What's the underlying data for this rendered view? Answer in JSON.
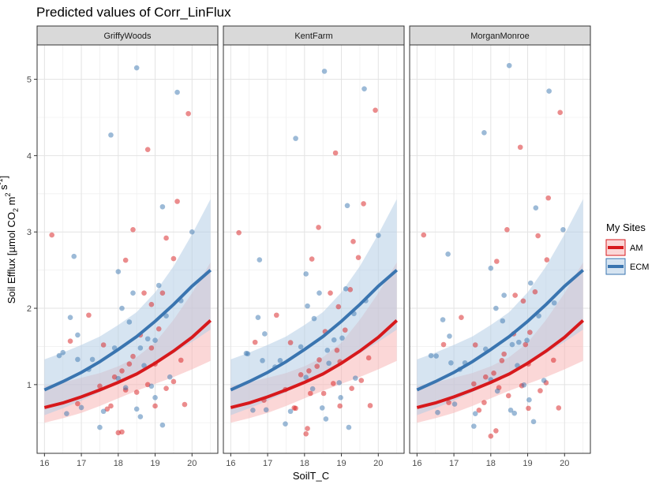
{
  "chart_data": {
    "type": "scatter",
    "title": "Predicted values of Corr_LinFlux",
    "xlabel": "SoilT_C",
    "ylabel": "Soil Efflux",
    "ylabel_unit_parts": [
      "[µmol CO",
      "2",
      " m",
      "2",
      " s",
      "-1",
      "]"
    ],
    "xlim": [
      15.8,
      20.7
    ],
    "ylim": [
      0.1,
      5.45
    ],
    "x_ticks": [
      16,
      17,
      18,
      19,
      20
    ],
    "y_ticks": [
      1,
      2,
      3,
      4,
      5
    ],
    "grid": true,
    "legend": {
      "title": "My Sites",
      "position": "right"
    },
    "colors": {
      "AM": "#d7191c",
      "ECM": "#3a75b0",
      "AM_ribbon": "#f7b6b6",
      "ECM_ribbon": "#b4cde6"
    },
    "facets": [
      {
        "name": "GriffyWoods",
        "am_offset": 0.0,
        "ecm_offset": 0.0
      },
      {
        "name": "KentFarm",
        "am_offset": 0.0,
        "ecm_offset": 0.0
      },
      {
        "name": "MorganMonroe",
        "am_offset": 0.0,
        "ecm_offset": 0.0
      }
    ],
    "series": [
      {
        "name": "AM",
        "fit": {
          "x": [
            16.0,
            16.5,
            17.0,
            17.5,
            18.0,
            18.5,
            19.0,
            19.5,
            20.0,
            20.5
          ],
          "y": [
            0.7,
            0.76,
            0.84,
            0.93,
            1.03,
            1.14,
            1.28,
            1.44,
            1.62,
            1.84
          ]
        },
        "ribbon_low": [
          0.5,
          0.56,
          0.63,
          0.72,
          0.82,
          0.92,
          1.01,
          1.1,
          1.2,
          1.31
        ],
        "ribbon_high": [
          0.98,
          1.03,
          1.09,
          1.15,
          1.24,
          1.36,
          1.55,
          1.85,
          2.2,
          2.6
        ],
        "points": [
          [
            16.2,
            2.96
          ],
          [
            16.7,
            1.57
          ],
          [
            16.9,
            0.75
          ],
          [
            17.2,
            1.91
          ],
          [
            17.5,
            0.98
          ],
          [
            17.7,
            0.68
          ],
          [
            17.8,
            0.72
          ],
          [
            17.9,
            1.1
          ],
          [
            18.0,
            0.37
          ],
          [
            18.1,
            0.38
          ],
          [
            18.1,
            1.18
          ],
          [
            18.2,
            0.93
          ],
          [
            18.2,
            2.63
          ],
          [
            18.3,
            1.27
          ],
          [
            18.4,
            3.03
          ],
          [
            18.5,
            0.9
          ],
          [
            18.6,
            1.65
          ],
          [
            18.7,
            2.2
          ],
          [
            18.8,
            4.08
          ],
          [
            18.8,
            1.0
          ],
          [
            18.9,
            2.05
          ],
          [
            19.0,
            1.27
          ],
          [
            19.1,
            1.73
          ],
          [
            19.2,
            2.2
          ],
          [
            19.3,
            0.95
          ],
          [
            19.3,
            2.92
          ],
          [
            19.5,
            2.65
          ],
          [
            19.6,
            3.4
          ],
          [
            19.7,
            1.32
          ],
          [
            19.8,
            0.74
          ],
          [
            19.9,
            4.55
          ],
          [
            19.0,
            0.72
          ],
          [
            18.4,
            1.37
          ],
          [
            19.5,
            1.04
          ],
          [
            18.9,
            1.48
          ],
          [
            17.6,
            1.52
          ]
        ]
      },
      {
        "name": "ECM",
        "fit": {
          "x": [
            16.0,
            16.5,
            17.0,
            17.5,
            18.0,
            18.5,
            19.0,
            19.5,
            20.0,
            20.5
          ],
          "y": [
            0.93,
            1.04,
            1.16,
            1.3,
            1.46,
            1.63,
            1.83,
            2.05,
            2.29,
            2.5
          ]
        },
        "ribbon_low": [
          0.6,
          0.69,
          0.79,
          0.9,
          1.02,
          1.14,
          1.27,
          1.41,
          1.56,
          1.72
        ],
        "ribbon_high": [
          1.33,
          1.42,
          1.52,
          1.63,
          1.78,
          1.95,
          2.21,
          2.55,
          2.97,
          3.43
        ],
        "points": [
          [
            16.4,
            1.38
          ],
          [
            16.5,
            1.42
          ],
          [
            16.6,
            0.62
          ],
          [
            16.7,
            1.88
          ],
          [
            16.8,
            2.68
          ],
          [
            16.9,
            1.65
          ],
          [
            17.0,
            0.7
          ],
          [
            17.2,
            1.2
          ],
          [
            17.3,
            1.33
          ],
          [
            17.5,
            0.44
          ],
          [
            17.6,
            0.65
          ],
          [
            17.8,
            4.27
          ],
          [
            17.9,
            1.48
          ],
          [
            18.0,
            2.48
          ],
          [
            18.1,
            2.0
          ],
          [
            18.2,
            0.96
          ],
          [
            18.3,
            1.82
          ],
          [
            18.4,
            2.2
          ],
          [
            18.5,
            5.15
          ],
          [
            18.5,
            0.68
          ],
          [
            18.6,
            1.48
          ],
          [
            18.7,
            1.25
          ],
          [
            18.8,
            1.6
          ],
          [
            18.9,
            0.98
          ],
          [
            19.0,
            0.83
          ],
          [
            19.1,
            2.3
          ],
          [
            19.2,
            3.33
          ],
          [
            19.2,
            0.47
          ],
          [
            19.3,
            1.9
          ],
          [
            19.4,
            1.1
          ],
          [
            19.6,
            4.83
          ],
          [
            19.7,
            2.1
          ],
          [
            20.0,
            3.0
          ],
          [
            18.0,
            1.08
          ],
          [
            18.6,
            0.58
          ],
          [
            19.0,
            1.58
          ],
          [
            16.9,
            1.33
          ]
        ]
      }
    ]
  }
}
